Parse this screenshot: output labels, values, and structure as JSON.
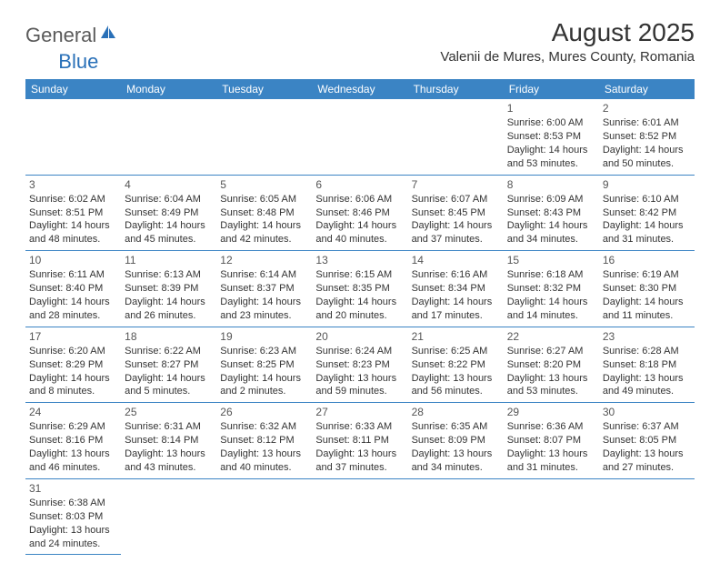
{
  "logo": {
    "part1": "General",
    "part2": "Blue"
  },
  "title": "August 2025",
  "location": "Valenii de Mures, Mures County, Romania",
  "colors": {
    "header_bg": "#3b84c4",
    "header_text": "#ffffff",
    "border": "#3b84c4",
    "text": "#333333",
    "logo_gray": "#5a5a5a",
    "logo_blue": "#2970b8"
  },
  "typography": {
    "title_fontsize": 28,
    "location_fontsize": 15,
    "header_fontsize": 12,
    "cell_fontsize": 11,
    "logo_fontsize": 22
  },
  "weekdays": [
    "Sunday",
    "Monday",
    "Tuesday",
    "Wednesday",
    "Thursday",
    "Friday",
    "Saturday"
  ],
  "weeks": [
    [
      null,
      null,
      null,
      null,
      null,
      {
        "n": "1",
        "sr": "Sunrise: 6:00 AM",
        "ss": "Sunset: 8:53 PM",
        "d1": "Daylight: 14 hours",
        "d2": "and 53 minutes."
      },
      {
        "n": "2",
        "sr": "Sunrise: 6:01 AM",
        "ss": "Sunset: 8:52 PM",
        "d1": "Daylight: 14 hours",
        "d2": "and 50 minutes."
      }
    ],
    [
      {
        "n": "3",
        "sr": "Sunrise: 6:02 AM",
        "ss": "Sunset: 8:51 PM",
        "d1": "Daylight: 14 hours",
        "d2": "and 48 minutes."
      },
      {
        "n": "4",
        "sr": "Sunrise: 6:04 AM",
        "ss": "Sunset: 8:49 PM",
        "d1": "Daylight: 14 hours",
        "d2": "and 45 minutes."
      },
      {
        "n": "5",
        "sr": "Sunrise: 6:05 AM",
        "ss": "Sunset: 8:48 PM",
        "d1": "Daylight: 14 hours",
        "d2": "and 42 minutes."
      },
      {
        "n": "6",
        "sr": "Sunrise: 6:06 AM",
        "ss": "Sunset: 8:46 PM",
        "d1": "Daylight: 14 hours",
        "d2": "and 40 minutes."
      },
      {
        "n": "7",
        "sr": "Sunrise: 6:07 AM",
        "ss": "Sunset: 8:45 PM",
        "d1": "Daylight: 14 hours",
        "d2": "and 37 minutes."
      },
      {
        "n": "8",
        "sr": "Sunrise: 6:09 AM",
        "ss": "Sunset: 8:43 PM",
        "d1": "Daylight: 14 hours",
        "d2": "and 34 minutes."
      },
      {
        "n": "9",
        "sr": "Sunrise: 6:10 AM",
        "ss": "Sunset: 8:42 PM",
        "d1": "Daylight: 14 hours",
        "d2": "and 31 minutes."
      }
    ],
    [
      {
        "n": "10",
        "sr": "Sunrise: 6:11 AM",
        "ss": "Sunset: 8:40 PM",
        "d1": "Daylight: 14 hours",
        "d2": "and 28 minutes."
      },
      {
        "n": "11",
        "sr": "Sunrise: 6:13 AM",
        "ss": "Sunset: 8:39 PM",
        "d1": "Daylight: 14 hours",
        "d2": "and 26 minutes."
      },
      {
        "n": "12",
        "sr": "Sunrise: 6:14 AM",
        "ss": "Sunset: 8:37 PM",
        "d1": "Daylight: 14 hours",
        "d2": "and 23 minutes."
      },
      {
        "n": "13",
        "sr": "Sunrise: 6:15 AM",
        "ss": "Sunset: 8:35 PM",
        "d1": "Daylight: 14 hours",
        "d2": "and 20 minutes."
      },
      {
        "n": "14",
        "sr": "Sunrise: 6:16 AM",
        "ss": "Sunset: 8:34 PM",
        "d1": "Daylight: 14 hours",
        "d2": "and 17 minutes."
      },
      {
        "n": "15",
        "sr": "Sunrise: 6:18 AM",
        "ss": "Sunset: 8:32 PM",
        "d1": "Daylight: 14 hours",
        "d2": "and 14 minutes."
      },
      {
        "n": "16",
        "sr": "Sunrise: 6:19 AM",
        "ss": "Sunset: 8:30 PM",
        "d1": "Daylight: 14 hours",
        "d2": "and 11 minutes."
      }
    ],
    [
      {
        "n": "17",
        "sr": "Sunrise: 6:20 AM",
        "ss": "Sunset: 8:29 PM",
        "d1": "Daylight: 14 hours",
        "d2": "and 8 minutes."
      },
      {
        "n": "18",
        "sr": "Sunrise: 6:22 AM",
        "ss": "Sunset: 8:27 PM",
        "d1": "Daylight: 14 hours",
        "d2": "and 5 minutes."
      },
      {
        "n": "19",
        "sr": "Sunrise: 6:23 AM",
        "ss": "Sunset: 8:25 PM",
        "d1": "Daylight: 14 hours",
        "d2": "and 2 minutes."
      },
      {
        "n": "20",
        "sr": "Sunrise: 6:24 AM",
        "ss": "Sunset: 8:23 PM",
        "d1": "Daylight: 13 hours",
        "d2": "and 59 minutes."
      },
      {
        "n": "21",
        "sr": "Sunrise: 6:25 AM",
        "ss": "Sunset: 8:22 PM",
        "d1": "Daylight: 13 hours",
        "d2": "and 56 minutes."
      },
      {
        "n": "22",
        "sr": "Sunrise: 6:27 AM",
        "ss": "Sunset: 8:20 PM",
        "d1": "Daylight: 13 hours",
        "d2": "and 53 minutes."
      },
      {
        "n": "23",
        "sr": "Sunrise: 6:28 AM",
        "ss": "Sunset: 8:18 PM",
        "d1": "Daylight: 13 hours",
        "d2": "and 49 minutes."
      }
    ],
    [
      {
        "n": "24",
        "sr": "Sunrise: 6:29 AM",
        "ss": "Sunset: 8:16 PM",
        "d1": "Daylight: 13 hours",
        "d2": "and 46 minutes."
      },
      {
        "n": "25",
        "sr": "Sunrise: 6:31 AM",
        "ss": "Sunset: 8:14 PM",
        "d1": "Daylight: 13 hours",
        "d2": "and 43 minutes."
      },
      {
        "n": "26",
        "sr": "Sunrise: 6:32 AM",
        "ss": "Sunset: 8:12 PM",
        "d1": "Daylight: 13 hours",
        "d2": "and 40 minutes."
      },
      {
        "n": "27",
        "sr": "Sunrise: 6:33 AM",
        "ss": "Sunset: 8:11 PM",
        "d1": "Daylight: 13 hours",
        "d2": "and 37 minutes."
      },
      {
        "n": "28",
        "sr": "Sunrise: 6:35 AM",
        "ss": "Sunset: 8:09 PM",
        "d1": "Daylight: 13 hours",
        "d2": "and 34 minutes."
      },
      {
        "n": "29",
        "sr": "Sunrise: 6:36 AM",
        "ss": "Sunset: 8:07 PM",
        "d1": "Daylight: 13 hours",
        "d2": "and 31 minutes."
      },
      {
        "n": "30",
        "sr": "Sunrise: 6:37 AM",
        "ss": "Sunset: 8:05 PM",
        "d1": "Daylight: 13 hours",
        "d2": "and 27 minutes."
      }
    ],
    [
      {
        "n": "31",
        "sr": "Sunrise: 6:38 AM",
        "ss": "Sunset: 8:03 PM",
        "d1": "Daylight: 13 hours",
        "d2": "and 24 minutes."
      },
      null,
      null,
      null,
      null,
      null,
      null
    ]
  ]
}
